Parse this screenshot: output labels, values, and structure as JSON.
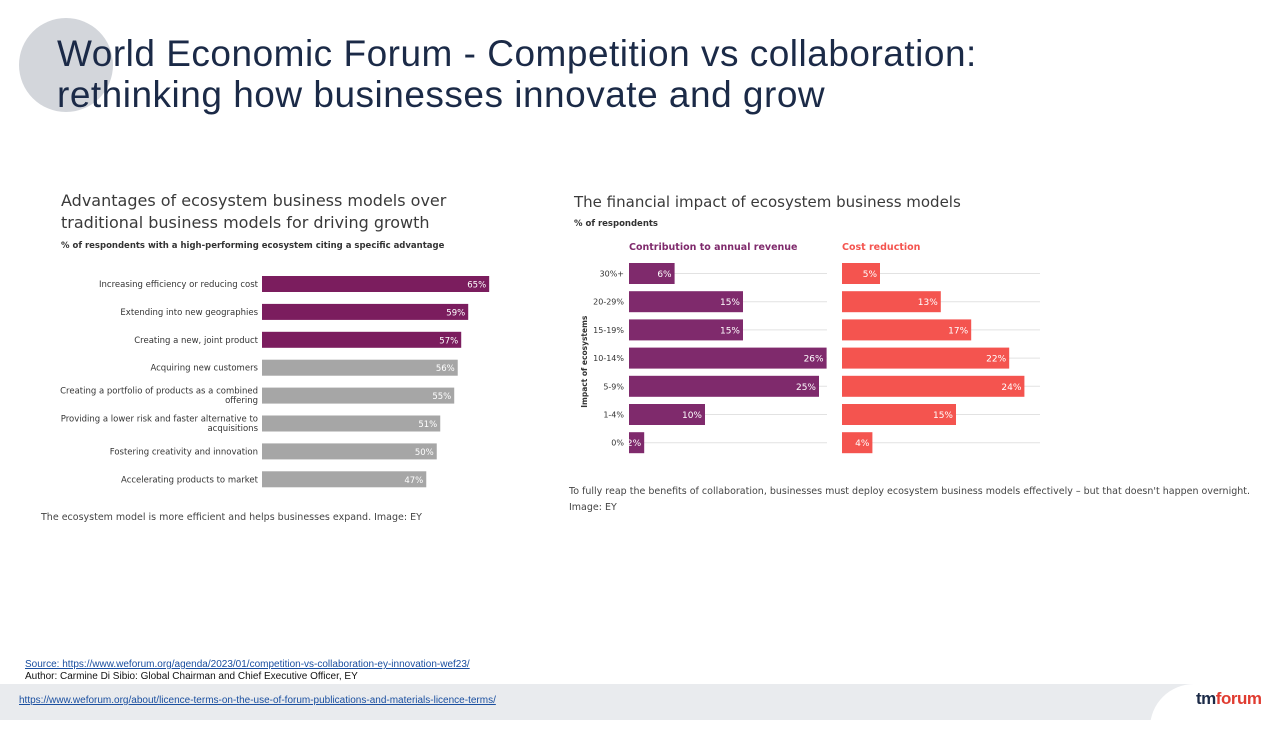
{
  "slide": {
    "title_line1": "World Economic Forum - Competition vs collaboration:",
    "title_line2": "rethinking how businesses innovate and grow",
    "source_link": "Source: https://www.weforum.org/agenda/2023/01/competition-vs-collaboration-ey-innovation-wef23/",
    "author": "Author: Carmine Di Sibio: Global Chairman and Chief Executive Officer, EY",
    "licence_link": "https://www.weforum.org/about/licence-terms-on-the-use-of-forum-publications-and-materials-licence-terms/",
    "logo_tm": "tm",
    "logo_forum": "forum"
  },
  "left_panel": {
    "title_line1": "Advantages of ecosystem business models over",
    "title_line2": "traditional business models for driving growth",
    "subtitle": "% of respondents with a high-performing ecosystem citing a specific advantage",
    "caption": "The ecosystem model is more efficient and helps businesses expand. Image: EY"
  },
  "right_panel": {
    "title": "The financial impact of ecosystem business models",
    "subtitle": "% of respondents",
    "caption_line1": "To fully reap the benefits of collaboration, businesses must deploy ecosystem business models effectively – but that doesn't happen overnight.",
    "caption_line2": "Image: EY"
  },
  "colors": {
    "purple": "#7b1d5e",
    "grey": "#a6a6a6",
    "purple2": "#7f2a6c",
    "coral": "#f4544f",
    "title_navy": "#1b2a47"
  },
  "chart_data": [
    {
      "type": "bar",
      "orientation": "horizontal",
      "title": "Advantages of ecosystem business models over traditional business models for driving growth",
      "subtitle": "% of respondents with a high-performing ecosystem citing a specific advantage",
      "categories": [
        [
          "Increasing efficiency or reducing cost"
        ],
        [
          "Extending into new geographies"
        ],
        [
          "Creating a new, joint product"
        ],
        [
          "Acquiring new customers"
        ],
        [
          "Creating a portfolio of products as a combined",
          "offering"
        ],
        [
          "Providing a lower risk and faster alternative to",
          "acquisitions"
        ],
        [
          "Fostering creativity and innovation"
        ],
        [
          "Accelerating products to market"
        ]
      ],
      "values": [
        65,
        59,
        57,
        56,
        55,
        51,
        50,
        47
      ],
      "highlighted": [
        true,
        true,
        true,
        false,
        false,
        false,
        false,
        false
      ],
      "unit": "%"
    },
    {
      "type": "bar",
      "orientation": "horizontal",
      "title": "The financial impact of ecosystem business models",
      "subtitle": "% of respondents",
      "ylabel": "Impact of ecosystems",
      "categories": [
        "30%+",
        "20-29%",
        "15-19%",
        "10-14%",
        "5-9%",
        "1-4%",
        "0%"
      ],
      "series": [
        {
          "name": "Contribution to annual revenue",
          "values": [
            6,
            15,
            15,
            26,
            25,
            10,
            2
          ]
        },
        {
          "name": "Cost reduction",
          "values": [
            5,
            13,
            17,
            22,
            24,
            15,
            4
          ]
        }
      ],
      "unit": "%"
    }
  ]
}
